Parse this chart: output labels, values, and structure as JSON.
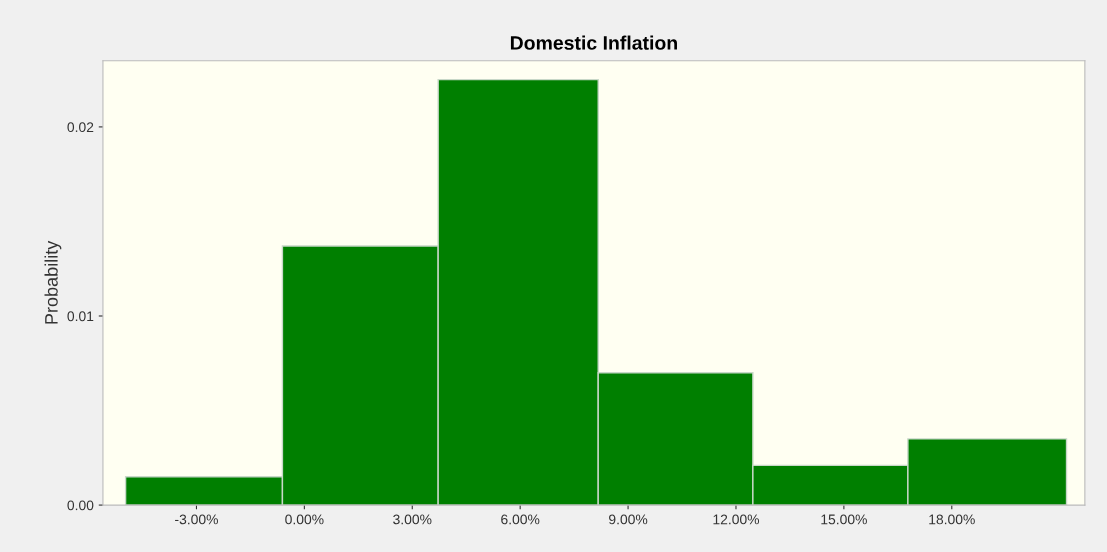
{
  "chart_data": {
    "type": "histogram",
    "title": "Domestic Inflation",
    "ylabel": "Probability",
    "bins": [
      -4.97,
      -0.61,
      3.72,
      8.17,
      12.47,
      16.78,
      21.19
    ],
    "values": [
      0.0015,
      0.0137,
      0.0225,
      0.007,
      0.0021,
      0.0035
    ],
    "color": "#007f00",
    "xlim": [
      -5.6,
      21.7
    ],
    "ylim": [
      0,
      0.0235
    ],
    "xticks": [
      {
        "value": -3,
        "label": "-3.00%"
      },
      {
        "value": 0,
        "label": "0.00%"
      },
      {
        "value": 3,
        "label": "3.00%"
      },
      {
        "value": 6,
        "label": "6.00%"
      },
      {
        "value": 9,
        "label": "9.00%"
      },
      {
        "value": 12,
        "label": "12.00%"
      },
      {
        "value": 15,
        "label": "15.00%"
      },
      {
        "value": 18,
        "label": "18.00%"
      }
    ],
    "yticks": [
      {
        "value": 0,
        "label": "0.00"
      },
      {
        "value": 0.01,
        "label": "0.01"
      },
      {
        "value": 0.02,
        "label": "0.02"
      }
    ],
    "grid": false,
    "legend": false
  }
}
